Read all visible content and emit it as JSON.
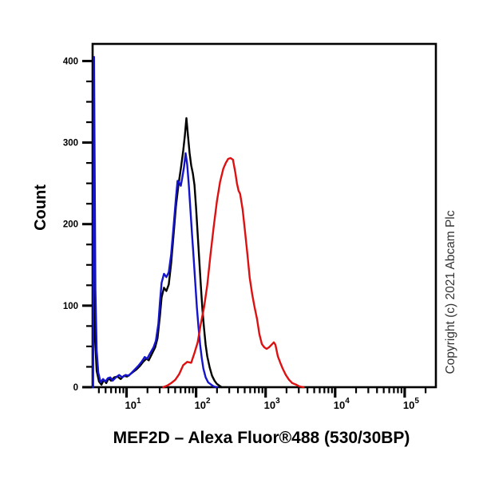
{
  "page": {
    "background": "#ffffff"
  },
  "y_axis_title": "Count",
  "title": "MEF2D – Alexa Fluor®488 (530/30BP)",
  "copyright": "Copyright (c) 2021 Abcam Plc",
  "chart_data": {
    "type": "line",
    "subtype": "flow-cytometry-histogram-overlay",
    "title": "MEF2D – Alexa Fluor®488 (530/30BP)",
    "xlabel": "MEF2D – Alexa Fluor®488 (530/30BP)",
    "ylabel": "Count",
    "x_scale": "log10",
    "xlim_log10": [
      0.512,
      5.449
    ],
    "ylim": [
      0,
      421
    ],
    "grid": false,
    "legend": null,
    "y_ticks_major": [
      0,
      100,
      200,
      300,
      400
    ],
    "y_tick_labels": [
      "0",
      "100",
      "200",
      "300",
      "400"
    ],
    "y_tick_minor_step": 25,
    "x_ticks_log10": [
      1,
      2,
      3,
      4,
      5
    ],
    "x_tick_labels": [
      {
        "mantissa": "10",
        "exponent": "1"
      },
      {
        "mantissa": "10",
        "exponent": "2"
      },
      {
        "mantissa": "10",
        "exponent": "3"
      },
      {
        "mantissa": "10",
        "exponent": "4"
      },
      {
        "mantissa": "10",
        "exponent": "5"
      }
    ],
    "axis_color": "#000000",
    "series": [
      {
        "name": "control-black",
        "color": "#000000",
        "points": [
          [
            0.518,
            0
          ],
          [
            0.529,
            250
          ],
          [
            0.547,
            60
          ],
          [
            0.57,
            20
          ],
          [
            0.604,
            7
          ],
          [
            0.639,
            3
          ],
          [
            0.674,
            9
          ],
          [
            0.708,
            5
          ],
          [
            0.743,
            11
          ],
          [
            0.777,
            8
          ],
          [
            0.823,
            12
          ],
          [
            0.87,
            13
          ],
          [
            0.916,
            10
          ],
          [
            0.962,
            14
          ],
          [
            1.008,
            13
          ],
          [
            1.054,
            16
          ],
          [
            1.1,
            19
          ],
          [
            1.146,
            22
          ],
          [
            1.193,
            26
          ],
          [
            1.239,
            31
          ],
          [
            1.285,
            35
          ],
          [
            1.319,
            33
          ],
          [
            1.366,
            41
          ],
          [
            1.412,
            49
          ],
          [
            1.446,
            60
          ],
          [
            1.481,
            88
          ],
          [
            1.504,
            110
          ],
          [
            1.538,
            122
          ],
          [
            1.573,
            118
          ],
          [
            1.607,
            126
          ],
          [
            1.642,
            152
          ],
          [
            1.677,
            188
          ],
          [
            1.711,
            222
          ],
          [
            1.746,
            248
          ],
          [
            1.781,
            268
          ],
          [
            1.815,
            290
          ],
          [
            1.838,
            308
          ],
          [
            1.861,
            330
          ],
          [
            1.884,
            308
          ],
          [
            1.907,
            287
          ],
          [
            1.93,
            272
          ],
          [
            1.954,
            262
          ],
          [
            1.977,
            248
          ],
          [
            2.0,
            220
          ],
          [
            2.023,
            188
          ],
          [
            2.046,
            156
          ],
          [
            2.069,
            124
          ],
          [
            2.092,
            95
          ],
          [
            2.115,
            72
          ],
          [
            2.138,
            52
          ],
          [
            2.161,
            38
          ],
          [
            2.196,
            24
          ],
          [
            2.23,
            14
          ],
          [
            2.265,
            8
          ],
          [
            2.3,
            4
          ],
          [
            2.334,
            2
          ],
          [
            2.369,
            0
          ]
        ]
      },
      {
        "name": "control-blue",
        "color": "#1414cc",
        "points": [
          [
            0.518,
            0
          ],
          [
            0.533,
            405
          ],
          [
            0.552,
            120
          ],
          [
            0.57,
            45
          ],
          [
            0.593,
            18
          ],
          [
            0.627,
            6
          ],
          [
            0.662,
            10
          ],
          [
            0.697,
            7
          ],
          [
            0.731,
            11
          ],
          [
            0.766,
            12
          ],
          [
            0.8,
            8
          ],
          [
            0.847,
            12
          ],
          [
            0.893,
            15
          ],
          [
            0.939,
            12
          ],
          [
            0.985,
            15
          ],
          [
            1.031,
            14
          ],
          [
            1.077,
            18
          ],
          [
            1.123,
            22
          ],
          [
            1.169,
            26
          ],
          [
            1.216,
            31
          ],
          [
            1.262,
            37
          ],
          [
            1.296,
            35
          ],
          [
            1.342,
            42
          ],
          [
            1.389,
            49
          ],
          [
            1.423,
            57
          ],
          [
            1.458,
            78
          ],
          [
            1.481,
            105
          ],
          [
            1.504,
            128
          ],
          [
            1.538,
            139
          ],
          [
            1.573,
            135
          ],
          [
            1.607,
            141
          ],
          [
            1.642,
            163
          ],
          [
            1.677,
            198
          ],
          [
            1.711,
            232
          ],
          [
            1.734,
            253
          ],
          [
            1.757,
            251
          ],
          [
            1.781,
            247
          ],
          [
            1.804,
            258
          ],
          [
            1.827,
            270
          ],
          [
            1.85,
            287
          ],
          [
            1.873,
            273
          ],
          [
            1.896,
            248
          ],
          [
            1.919,
            218
          ],
          [
            1.942,
            188
          ],
          [
            1.965,
            158
          ],
          [
            1.988,
            128
          ],
          [
            2.011,
            98
          ],
          [
            2.034,
            74
          ],
          [
            2.058,
            52
          ],
          [
            2.081,
            36
          ],
          [
            2.104,
            23
          ],
          [
            2.138,
            12
          ],
          [
            2.173,
            6
          ],
          [
            2.219,
            3
          ],
          [
            2.253,
            1
          ],
          [
            2.3,
            0
          ]
        ]
      },
      {
        "name": "mef2d-red",
        "color": "#dd1111",
        "points": [
          [
            1.527,
            0
          ],
          [
            1.585,
            2
          ],
          [
            1.642,
            5
          ],
          [
            1.7,
            9
          ],
          [
            1.757,
            16
          ],
          [
            1.815,
            27
          ],
          [
            1.873,
            31
          ],
          [
            1.93,
            30
          ],
          [
            1.977,
            42
          ],
          [
            2.023,
            55
          ],
          [
            2.069,
            78
          ],
          [
            2.115,
            98
          ],
          [
            2.161,
            125
          ],
          [
            2.207,
            162
          ],
          [
            2.253,
            196
          ],
          [
            2.3,
            228
          ],
          [
            2.346,
            252
          ],
          [
            2.392,
            268
          ],
          [
            2.427,
            275
          ],
          [
            2.461,
            280
          ],
          [
            2.496,
            281
          ],
          [
            2.53,
            279
          ],
          [
            2.565,
            263
          ],
          [
            2.588,
            250
          ],
          [
            2.611,
            241
          ],
          [
            2.634,
            237
          ],
          [
            2.669,
            218
          ],
          [
            2.703,
            192
          ],
          [
            2.738,
            163
          ],
          [
            2.772,
            134
          ],
          [
            2.807,
            114
          ],
          [
            2.842,
            98
          ],
          [
            2.876,
            84
          ],
          [
            2.911,
            65
          ],
          [
            2.946,
            53
          ],
          [
            2.98,
            49
          ],
          [
            3.015,
            47
          ],
          [
            3.049,
            49
          ],
          [
            3.084,
            52
          ],
          [
            3.118,
            55
          ],
          [
            3.141,
            52
          ],
          [
            3.176,
            38
          ],
          [
            3.211,
            30
          ],
          [
            3.245,
            23
          ],
          [
            3.291,
            15
          ],
          [
            3.337,
            9
          ],
          [
            3.383,
            5
          ],
          [
            3.441,
            3
          ],
          [
            3.487,
            1
          ],
          [
            3.545,
            0
          ]
        ]
      }
    ]
  }
}
